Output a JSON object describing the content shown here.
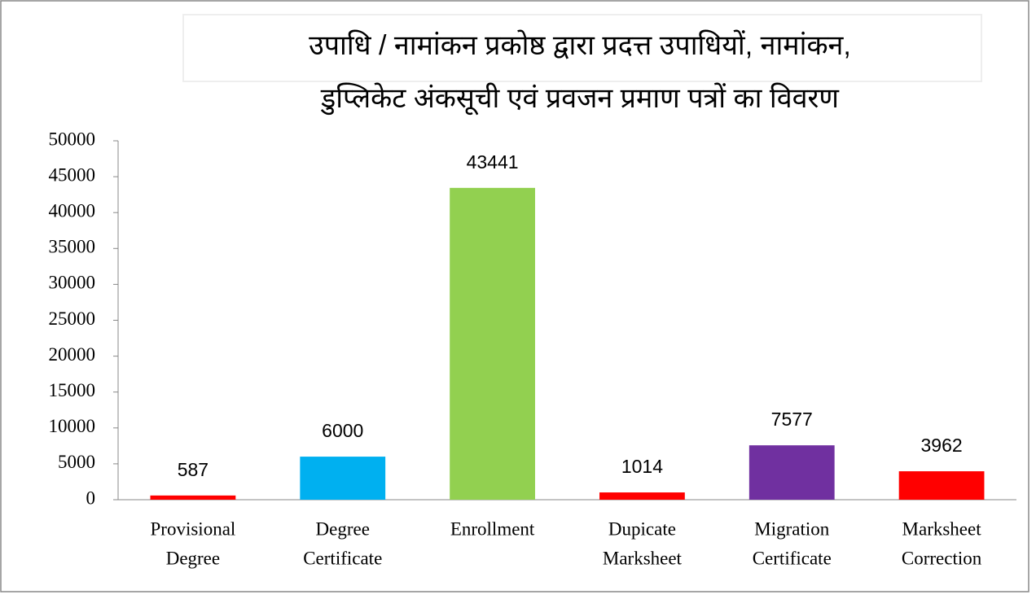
{
  "chart_data": {
    "type": "bar",
    "title": [
      "उपाधि / नामांकन प्रकोष्ठ द्वारा प्रदत्त उपाधियों, नामांकन,",
      "डुप्लिकेट अंकसूची  एवं प्रवजन प्रमाण पत्रों का विवरण"
    ],
    "categories": [
      [
        "Provisional",
        "Degree"
      ],
      [
        "Degree",
        "Certificate"
      ],
      [
        "Enrollment"
      ],
      [
        "Dupicate",
        "Marksheet"
      ],
      [
        "Migration",
        "Certificate"
      ],
      [
        "Marksheet",
        "Correction"
      ]
    ],
    "values": [
      587,
      6000,
      43441,
      1014,
      7577,
      3962
    ],
    "colors": [
      "#ff0000",
      "#00b0f0",
      "#92d050",
      "#ff0000",
      "#7030a0",
      "#ff0000"
    ],
    "ylim": [
      0,
      50000
    ],
    "yticks": [
      0,
      5000,
      10000,
      15000,
      20000,
      25000,
      30000,
      35000,
      40000,
      45000,
      50000
    ],
    "grid": false
  }
}
